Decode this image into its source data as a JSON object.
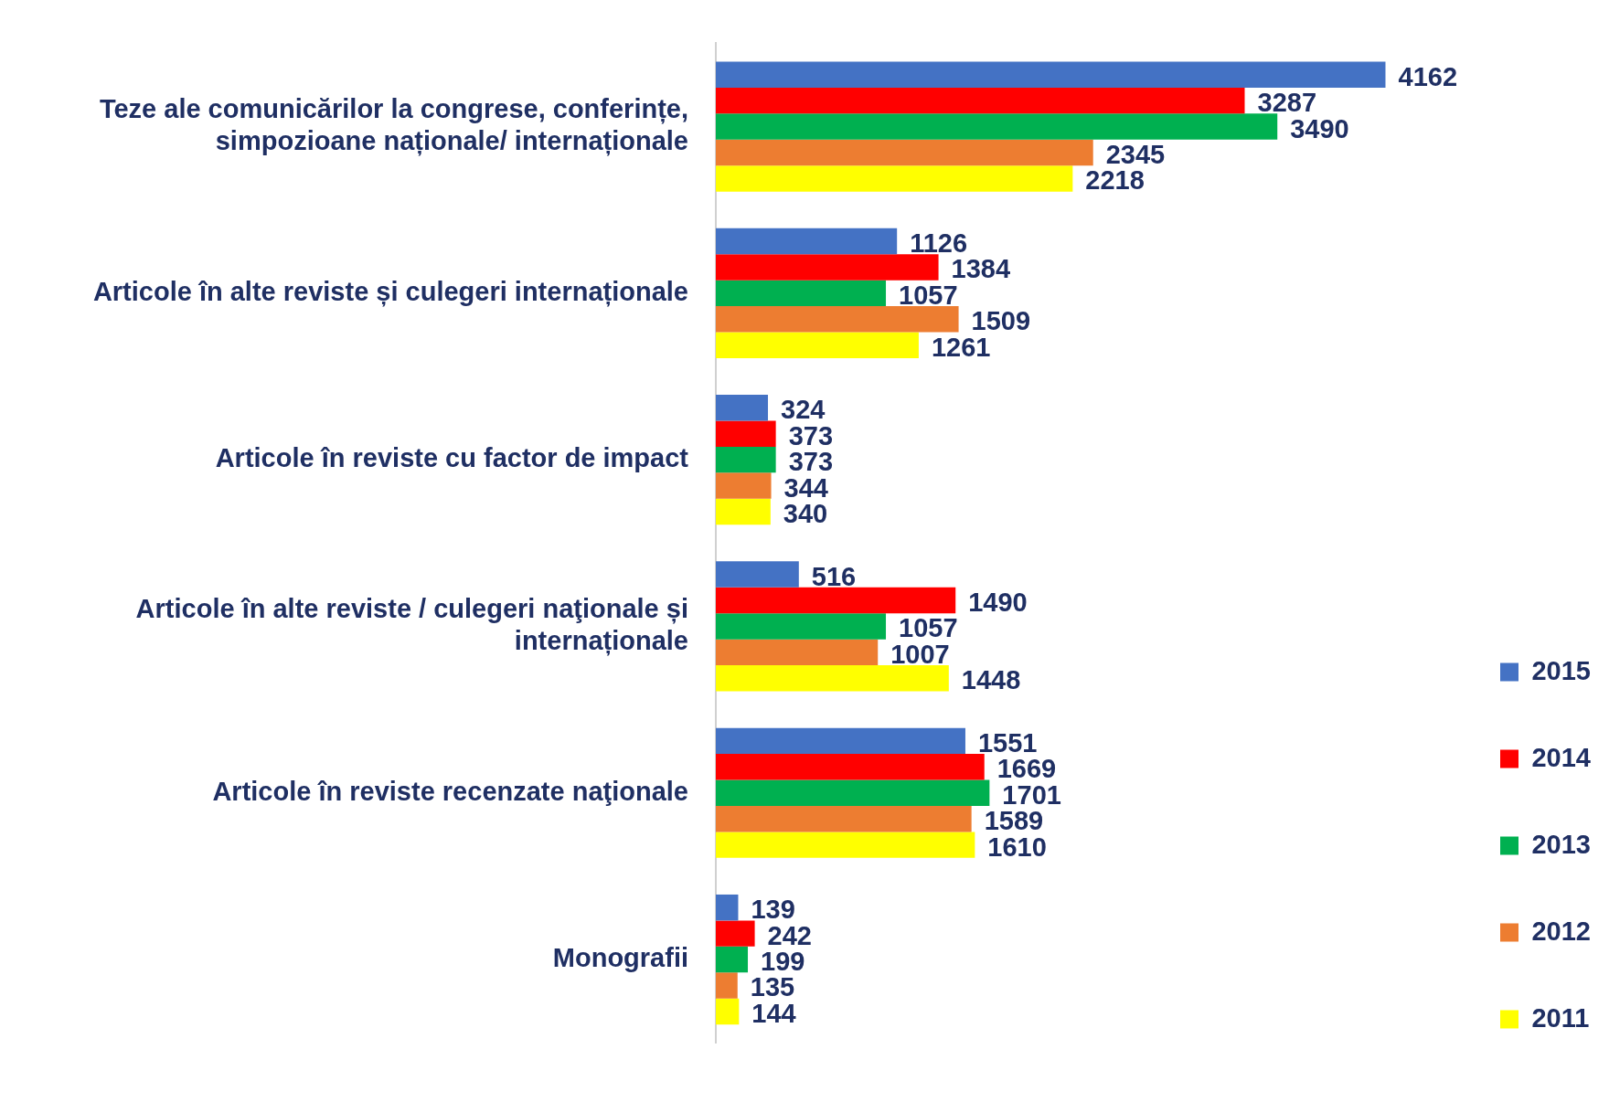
{
  "chart_data": {
    "type": "bar",
    "orientation": "horizontal",
    "categories": [
      "Teze ale comunicărilor la congrese, conferințe, simpozioane naționale/ internaționale",
      "Articole în alte reviste și culegeri internaționale",
      "Articole în reviste cu factor de impact",
      "Articole în alte reviste / culegeri naţionale și internaționale",
      "Articole în reviste recenzate naţionale",
      "Monografii"
    ],
    "series": [
      {
        "name": "2015",
        "color": "#4472c4",
        "values": [
          4162,
          1126,
          324,
          516,
          1551,
          139
        ]
      },
      {
        "name": "2014",
        "color": "#ff0000",
        "values": [
          3287,
          1384,
          373,
          1490,
          1669,
          242
        ]
      },
      {
        "name": "2013",
        "color": "#00b050",
        "values": [
          3490,
          1057,
          373,
          1057,
          1701,
          199
        ]
      },
      {
        "name": "2012",
        "color": "#ed7d31",
        "values": [
          2345,
          1509,
          344,
          1007,
          1589,
          135
        ]
      },
      {
        "name": "2011",
        "color": "#ffff00",
        "values": [
          2218,
          1261,
          340,
          1448,
          1610,
          144
        ]
      }
    ],
    "data_labels": true,
    "grid": false,
    "legend": "bottom right"
  }
}
